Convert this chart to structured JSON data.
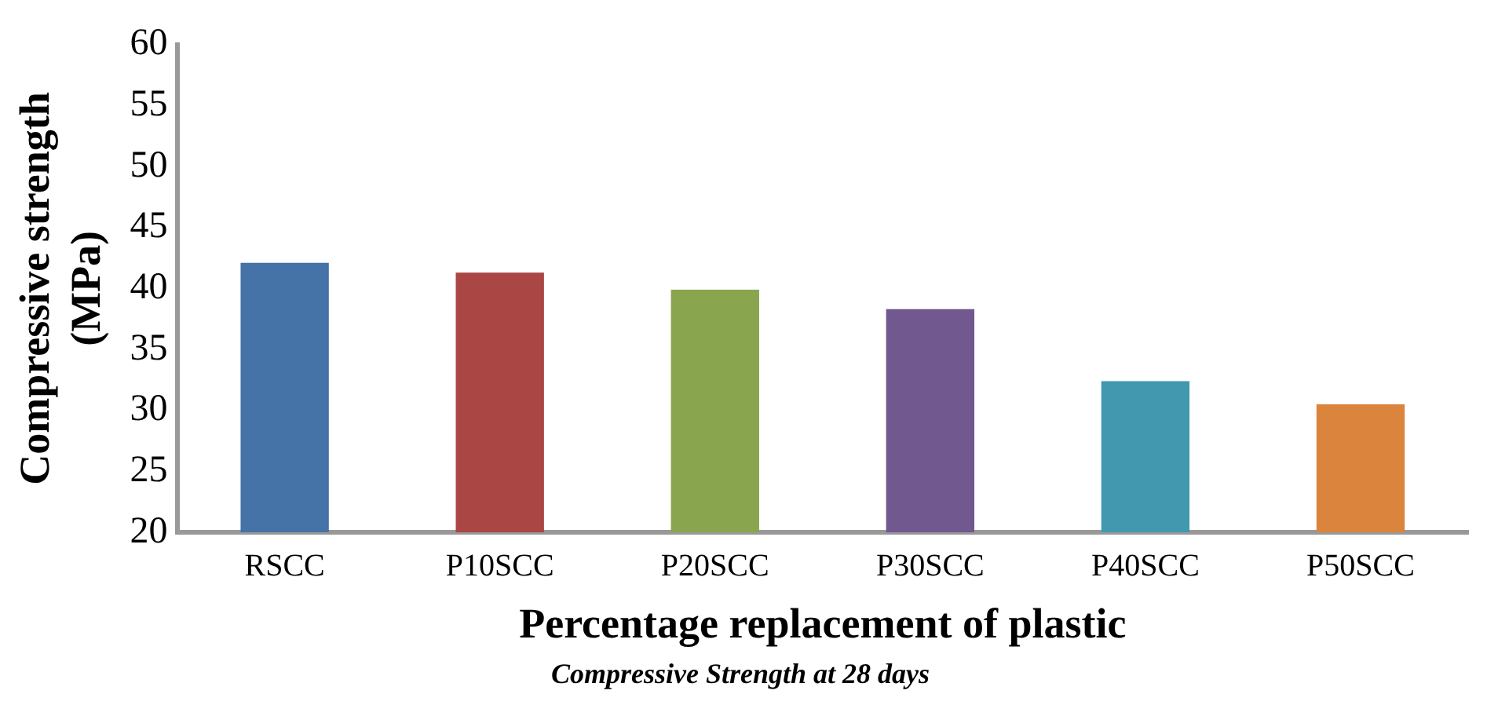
{
  "chart_data": {
    "type": "bar",
    "xlabel": "Percentage replacement of plastic",
    "ylabel": "Compressive strength (MPa)",
    "annotations": [
      "Compressive Strength at 28 days"
    ],
    "categories": [
      "RSCC",
      "P10SCC",
      "P20SCC",
      "P30SCC",
      "P40SCC",
      "P50SCC"
    ],
    "values": [
      42.1,
      41.3,
      39.9,
      38.3,
      32.4,
      30.5
    ],
    "colors": [
      "#4572a7",
      "#aa4643",
      "#89a54e",
      "#71588f",
      "#4198af",
      "#db843d"
    ],
    "ylim": [
      20,
      60
    ],
    "yticks": [
      20,
      25,
      30,
      35,
      40,
      45,
      50,
      55,
      60
    ],
    "grid": false,
    "legend": false
  }
}
